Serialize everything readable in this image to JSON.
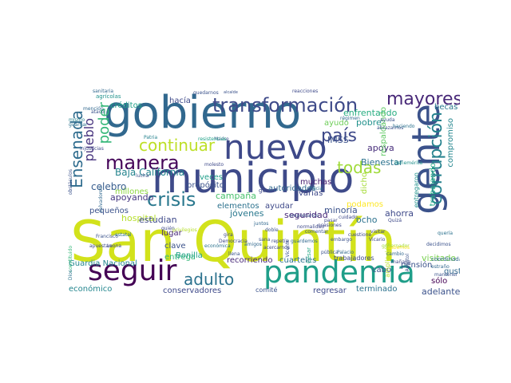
{
  "wordcloud": {
    "words": [
      {
        "text": "San Quintín",
        "color": "#d2e21b"
      },
      {
        "text": "gobierno",
        "color": "#31688e"
      },
      {
        "text": "municipio",
        "color": "#3e4a89"
      },
      {
        "text": "gente",
        "color": "#3b528b"
      },
      {
        "text": "nuevo",
        "color": "#3e4989"
      },
      {
        "text": "pandemia",
        "color": "#1f9e89"
      },
      {
        "text": "seguir",
        "color": "#440154"
      },
      {
        "text": "transformación",
        "color": "#3e4a89"
      },
      {
        "text": "mayores",
        "color": "#482878"
      },
      {
        "text": "corrupción",
        "color": "#26828e"
      },
      {
        "text": "manera",
        "color": "#450559"
      },
      {
        "text": "continuar",
        "color": "#bddf26"
      },
      {
        "text": "crisis",
        "color": "#2a788e"
      },
      {
        "text": "adulto",
        "color": "#2c728e"
      },
      {
        "text": "país",
        "color": "#3e4989"
      },
      {
        "text": "todas",
        "color": "#a0da39"
      },
      {
        "text": "Ensenada",
        "color": "#2f6c8e"
      },
      {
        "text": "pueblo",
        "color": "#46327e"
      },
      {
        "text": "poder",
        "color": "#35b779"
      },
      {
        "text": "Baja California",
        "color": "#25848e"
      },
      {
        "text": "créditos",
        "color": "#1fa187"
      },
      {
        "text": "hacía",
        "color": "#3e4989"
      },
      {
        "text": "enfrentando",
        "color": "#27ad81"
      },
      {
        "text": "pobre",
        "color": "#21918c"
      },
      {
        "text": "ayudo",
        "color": "#6ece58"
      },
      {
        "text": "IMSS",
        "color": "#3b528b"
      },
      {
        "text": "apoya",
        "color": "#472d7b"
      },
      {
        "text": "becas",
        "color": "#29798e"
      },
      {
        "text": "respaldando",
        "color": "#5ec962"
      },
      {
        "text": "compromiso",
        "color": "#24868e"
      },
      {
        "text": "trabajando",
        "color": "#22a884"
      },
      {
        "text": "entregaron",
        "color": "#20928c"
      },
      {
        "text": "Bienestar",
        "color": "#2c728e"
      },
      {
        "text": "propósito",
        "color": "#3b528b"
      },
      {
        "text": "veces",
        "color": "#1f9e89"
      },
      {
        "text": "muchas",
        "color": "#482071"
      },
      {
        "text": "varias",
        "color": "#3e4989"
      },
      {
        "text": "autoridades",
        "color": "#31688e"
      },
      {
        "text": "campaña",
        "color": "#4ac16d"
      },
      {
        "text": "celebro",
        "color": "#365c8d"
      },
      {
        "text": "apoyando",
        "color": "#453781"
      },
      {
        "text": "millones",
        "color": "#8fd744"
      },
      {
        "text": "hospital",
        "color": "#b5de2b"
      },
      {
        "text": "pequeños",
        "color": "#3b528b"
      },
      {
        "text": "elementos",
        "color": "#2c728e"
      },
      {
        "text": "ayudar",
        "color": "#3e4989"
      },
      {
        "text": "jóvenes",
        "color": "#2a788e"
      },
      {
        "text": "seguridad",
        "color": "#482878"
      },
      {
        "text": "minoría",
        "color": "#3b528b"
      },
      {
        "text": "podamos",
        "color": "#fde725"
      },
      {
        "text": "ahorra",
        "color": "#3e4989"
      },
      {
        "text": "dicho",
        "color": "#a5db36"
      },
      {
        "text": "ocho",
        "color": "#2c728e"
      },
      {
        "text": "estudian",
        "color": "#3e4989"
      },
      {
        "text": "lugar",
        "color": "#482878"
      },
      {
        "text": "clave",
        "color": "#3b528b"
      },
      {
        "text": "entrega",
        "color": "#35b779"
      },
      {
        "text": "Bonilla",
        "color": "#1fa187"
      },
      {
        "text": "Guardia Nacional",
        "color": "#24868e"
      },
      {
        "text": "recorriendo",
        "color": "#482878"
      },
      {
        "text": "cuarteles",
        "color": "#2c728e"
      },
      {
        "text": "trabajadores",
        "color": "#3e4989"
      },
      {
        "text": "cabo",
        "color": "#3b528b"
      },
      {
        "text": "pensión",
        "color": "#3b528b"
      },
      {
        "text": "visitado",
        "color": "#7ad151"
      },
      {
        "text": "gusto",
        "color": "#31688e"
      },
      {
        "text": "sólo",
        "color": "#440154"
      },
      {
        "text": "adelante",
        "color": "#3b528b"
      },
      {
        "text": "terminado",
        "color": "#2c728e"
      },
      {
        "text": "regresar",
        "color": "#3e4989"
      },
      {
        "text": "conservadores",
        "color": "#3e4989"
      },
      {
        "text": "económico",
        "color": "#24868e"
      },
      {
        "text": "comité",
        "color": "#3b528b"
      },
      {
        "text": "ampliación",
        "color": "#b8de29"
      },
      {
        "text": "coordinada",
        "color": "#31688e"
      },
      {
        "text": "alcalde",
        "color": "#3b528b"
      },
      {
        "text": "sanitaria",
        "color": "#31688e"
      },
      {
        "text": "agrícolas",
        "color": "#20928c"
      },
      {
        "text": "atacó",
        "color": "#3b528b"
      },
      {
        "text": "mismo",
        "color": "#26828e"
      },
      {
        "text": "guardar",
        "color": "#2c728e"
      },
      {
        "text": "reacciones",
        "color": "#3e4989"
      },
      {
        "text": "régimen",
        "color": "#31688e"
      },
      {
        "text": "abrazarnos",
        "color": "#3b528b"
      },
      {
        "text": "haciendo",
        "color": "#2c728e"
      },
      {
        "text": "Patria",
        "color": "#26828e"
      },
      {
        "text": "Madre",
        "color": "#3b528b"
      },
      {
        "text": "injusticias",
        "color": "#3e4989"
      },
      {
        "text": "resistencias",
        "color": "#1fa187"
      },
      {
        "text": "Benemérita",
        "color": "#21918c"
      },
      {
        "text": "obstáculos",
        "color": "#3b528b"
      },
      {
        "text": "salvadores",
        "color": "#31688e"
      },
      {
        "text": "ganar",
        "color": "#3e4989"
      },
      {
        "text": "estatal",
        "color": "#2c728e"
      },
      {
        "text": "constituido",
        "color": "#35b779"
      },
      {
        "text": "Francisco",
        "color": "#3b528b"
      },
      {
        "text": "Dios",
        "color": "#2c728e"
      },
      {
        "text": "apuestan",
        "color": "#3e4989"
      },
      {
        "text": "César",
        "color": "#22a884"
      },
      {
        "text": "Vicario",
        "color": "#3e4989"
      },
      {
        "text": "cambio",
        "color": "#31688e"
      },
      {
        "text": "decidimos",
        "color": "#3b528b"
      },
      {
        "text": "mañana",
        "color": "#3e4989"
      },
      {
        "text": "estraño",
        "color": "#31688e"
      },
      {
        "text": "mantener",
        "color": "#3b528b"
      },
      {
        "text": "Apóstol",
        "color": "#3b528b"
      },
      {
        "text": "visitar",
        "color": "#3e4989"
      },
      {
        "text": "quería",
        "color": "#2c728e"
      },
      {
        "text": "cuestione",
        "color": "#3e4989"
      },
      {
        "text": "comentar",
        "color": "#3b528b"
      },
      {
        "text": "ocasiones",
        "color": "#3e4989"
      },
      {
        "text": "gobernador",
        "color": "#a0da39"
      },
      {
        "text": "pública",
        "color": "#3b528b"
      },
      {
        "text": "Palacio",
        "color": "#31688e"
      },
      {
        "text": "normalidad",
        "color": "#3e4989"
      },
      {
        "text": "doble",
        "color": "#3b528b"
      },
      {
        "text": "repetía",
        "color": "#3e4989"
      },
      {
        "text": "guardemos",
        "color": "#31688e"
      },
      {
        "text": "económica",
        "color": "#2c728e"
      },
      {
        "text": "Democracia",
        "color": "#3e4989"
      },
      {
        "text": "sana",
        "color": "#3b528b"
      },
      {
        "text": "Leona",
        "color": "#3e4989"
      },
      {
        "text": "llena",
        "color": "#3b528b"
      },
      {
        "text": "acercarnos",
        "color": "#3e4989"
      },
      {
        "text": "amigos",
        "color": "#31688e"
      },
      {
        "text": "privilegios",
        "color": "#b5de2b"
      },
      {
        "text": "embargo",
        "color": "#3b528b"
      },
      {
        "text": "pasar",
        "color": "#3e4989"
      },
      {
        "text": "Vicente",
        "color": "#3b528b"
      },
      {
        "text": "cuidado",
        "color": "#3e4989"
      },
      {
        "text": "quedarnos",
        "color": "#3b528b"
      },
      {
        "text": "mención",
        "color": "#31688e"
      },
      {
        "text": "molesto",
        "color": "#3e4989"
      },
      {
        "text": "lucha",
        "color": "#3b528b"
      },
      {
        "text": "gira",
        "color": "#3e4989"
      },
      {
        "text": "hacia",
        "color": "#2c728e"
      },
      {
        "text": "juntos",
        "color": "#31688e"
      },
      {
        "text": "Quizá",
        "color": "#3e4989"
      },
      {
        "text": "ayuda",
        "color": "#3b528b"
      },
      {
        "text": "sabemos",
        "color": "#fde725"
      },
      {
        "text": "empresarios",
        "color": "#3b528b"
      },
      {
        "text": "quién",
        "color": "#3e4989"
      }
    ]
  }
}
